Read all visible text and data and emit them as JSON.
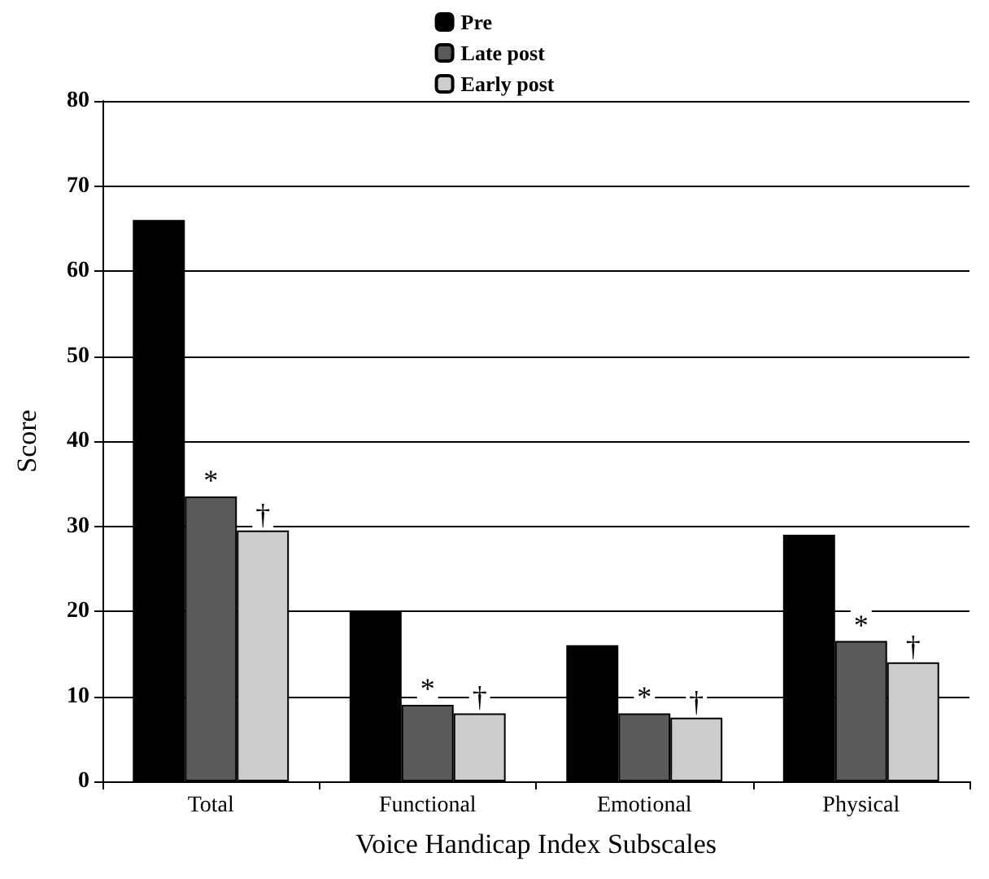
{
  "chart_data": {
    "type": "bar",
    "xlabel": "Voice Handicap Index Subscales",
    "ylabel": "Score",
    "categories": [
      "Total",
      "Functional",
      "Emotional",
      "Physical"
    ],
    "series": [
      {
        "name": "Pre",
        "color": "#000000",
        "values": [
          66,
          20,
          16,
          29
        ]
      },
      {
        "name": "Late post",
        "color": "#5a5a5a",
        "values": [
          33.5,
          9,
          8,
          16.5
        ]
      },
      {
        "name": "Early post",
        "color": "#cccccc",
        "values": [
          29.5,
          8,
          7.5,
          14
        ]
      }
    ],
    "ylim": [
      0,
      80
    ],
    "yticks": [
      0,
      10,
      20,
      30,
      40,
      50,
      60,
      70,
      80
    ],
    "grid": "y",
    "legend": "top",
    "annotations": [
      "*",
      "†",
      "*",
      "†",
      "*",
      "†",
      "*",
      "†"
    ]
  }
}
